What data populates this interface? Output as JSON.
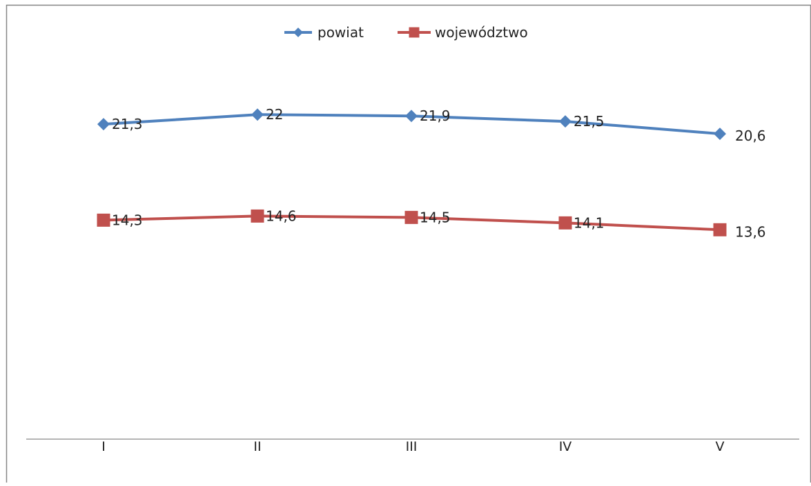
{
  "chart_data": {
    "type": "line",
    "categories": [
      "I",
      "II",
      "III",
      "IV",
      "V"
    ],
    "series": [
      {
        "name": "powiat",
        "values": [
          21.3,
          22,
          21.9,
          21.5,
          20.6
        ],
        "color": "#4f81bd",
        "marker": "diamond",
        "labels": [
          "21,3",
          "22",
          "21,9",
          "21,5",
          "20,6"
        ]
      },
      {
        "name": "województwo",
        "values": [
          14.3,
          14.6,
          14.5,
          14.1,
          13.6
        ],
        "color": "#c0504d",
        "marker": "square",
        "labels": [
          "14,3",
          "14,6",
          "14,5",
          "14,1",
          "13,6"
        ]
      }
    ],
    "legend": "top-center",
    "grid": false,
    "ylim": [
      0,
      30
    ],
    "axis_line_color": "#868686"
  }
}
